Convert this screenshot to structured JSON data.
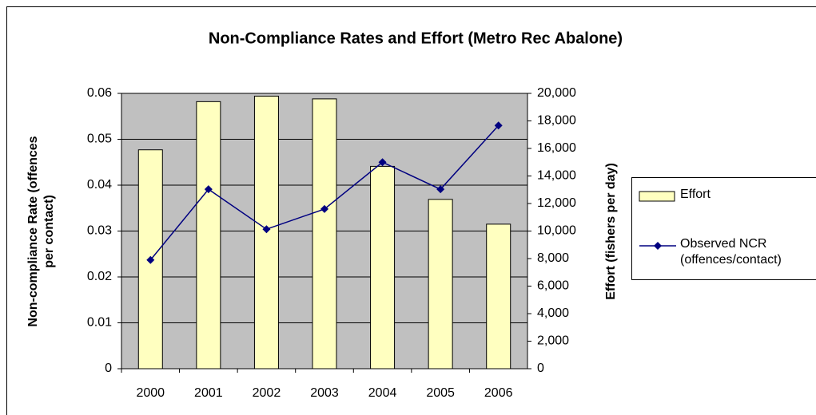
{
  "chart_data": {
    "type": "bar_line",
    "title": "Non-Compliance Rates and Effort (Metro Rec Abalone)",
    "y_label": "Non-compliance Rate (offences per contact)",
    "y2_label": "Effort (fishers per day)",
    "categories": [
      "2000",
      "2001",
      "2002",
      "2003",
      "2004",
      "2005",
      "2006"
    ],
    "series": [
      {
        "name": "Effort",
        "type": "bar",
        "axis": "y2",
        "color": "#ffffc0",
        "values": [
          15900,
          19400,
          19800,
          19600,
          14700,
          12300,
          10500
        ]
      },
      {
        "name": "Observed NCR (offences/contact)",
        "type": "line",
        "axis": "y",
        "color": "#000080",
        "values": [
          0.0237,
          0.0391,
          0.0304,
          0.0348,
          0.045,
          0.0391,
          0.053
        ]
      }
    ],
    "ylim": [
      0,
      0.06
    ],
    "yticks": [
      0,
      0.01,
      0.02,
      0.03,
      0.04,
      0.05,
      0.06
    ],
    "y2lim": [
      0,
      20000
    ],
    "y2ticks": [
      0,
      {
        "value": 2000,
        "label": "2,000"
      },
      {
        "value": 4000,
        "label": "4,000"
      },
      {
        "value": 6000,
        "label": "6,000"
      },
      {
        "value": 8000,
        "label": "8,000"
      },
      {
        "value": 10000,
        "label": "10,000"
      },
      {
        "value": 12000,
        "label": "12,000"
      },
      {
        "value": 14000,
        "label": "14,000"
      },
      {
        "value": 16000,
        "label": "16,000"
      },
      {
        "value": 18000,
        "label": "18,000"
      },
      {
        "value": 20000,
        "label": "20,000"
      }
    ],
    "grid": true,
    "legend": "right"
  }
}
